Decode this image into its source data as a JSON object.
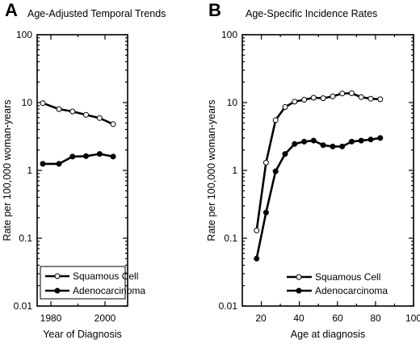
{
  "chart_data": [
    {
      "type": "line",
      "panel_label": "A",
      "title": "Age-Adjusted Temporal Trends",
      "xlabel": "Year of Diagnosis",
      "ylabel": "Rate per 100,000 woman-years",
      "yscale": "log",
      "ylim": [
        0.01,
        100
      ],
      "yticks": [
        "0.01",
        "0.1",
        "1",
        "10",
        "100"
      ],
      "xticks": [
        "1980",
        "2000"
      ],
      "legend_position": "bottom-left",
      "x": [
        1977,
        1983,
        1988,
        1993,
        1998,
        2003
      ],
      "series": [
        {
          "name": "Squamous Cell",
          "marker": "open-circle",
          "values": [
            9.8,
            8.0,
            7.4,
            6.6,
            5.9,
            4.8
          ]
        },
        {
          "name": "Adenocarcinoma",
          "marker": "filled-circle",
          "values": [
            1.25,
            1.25,
            1.6,
            1.62,
            1.75,
            1.6
          ]
        }
      ]
    },
    {
      "type": "line",
      "panel_label": "B",
      "title": "Age-Specific Incidence Rates",
      "xlabel": "Age at diagnosis",
      "ylabel": "Rate per 100,000 woman-years",
      "yscale": "log",
      "ylim": [
        0.01,
        100
      ],
      "xlim": [
        10,
        100
      ],
      "yticks": [
        "0.01",
        "0.1",
        "1",
        "10",
        "100"
      ],
      "xticks": [
        "20",
        "40",
        "60",
        "80",
        "100"
      ],
      "legend_position": "bottom-right",
      "x": [
        17.5,
        22.5,
        27.5,
        32.5,
        37.5,
        42.5,
        47.5,
        52.5,
        57.5,
        62.5,
        67.5,
        72.5,
        77.5,
        82.5
      ],
      "series": [
        {
          "name": "Squamous Cell",
          "marker": "open-circle",
          "values": [
            0.13,
            1.3,
            5.5,
            8.6,
            10.3,
            11.0,
            11.8,
            11.6,
            12.3,
            13.6,
            13.7,
            12.0,
            11.4,
            11.2
          ]
        },
        {
          "name": "Adenocarcinoma",
          "marker": "filled-circle",
          "values": [
            0.05,
            0.24,
            0.97,
            1.75,
            2.45,
            2.65,
            2.75,
            2.35,
            2.25,
            2.25,
            2.65,
            2.75,
            2.85,
            3.0
          ]
        }
      ]
    }
  ]
}
